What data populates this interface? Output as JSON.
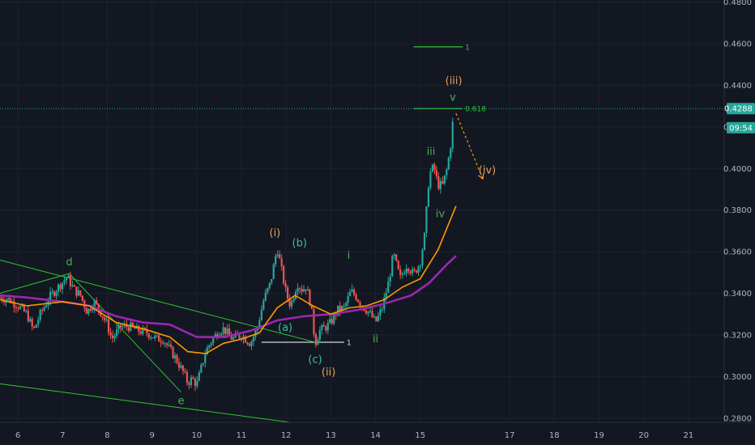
{
  "chart_data": {
    "type": "line",
    "y_axis": {
      "ticks": [
        "0.4800",
        "0.4600",
        "0.4400",
        "0.4200",
        "0.4000",
        "0.3800",
        "0.3600",
        "0.3400",
        "0.3200",
        "0.3000",
        "0.2800"
      ],
      "range": [
        0.278,
        0.481
      ]
    },
    "x_axis": {
      "ticks": [
        "6",
        "7",
        "8",
        "9",
        "10",
        "11",
        "12",
        "13",
        "14",
        "15",
        "17",
        "18",
        "19",
        "20",
        "21"
      ],
      "tick_values": [
        6,
        7,
        8,
        9,
        10,
        11,
        12,
        13,
        14,
        15,
        17,
        18,
        19,
        20,
        21
      ],
      "range": [
        5.6,
        21.8
      ]
    },
    "price_label": "0.4288",
    "price_value": 0.4288,
    "countdown_label": "09:54",
    "countdown_value": 0.4235,
    "price_series": [
      [
        5.6,
        0.338
      ],
      [
        5.8,
        0.337
      ],
      [
        6.0,
        0.334
      ],
      [
        6.2,
        0.33
      ],
      [
        6.35,
        0.322
      ],
      [
        6.5,
        0.33
      ],
      [
        6.7,
        0.338
      ],
      [
        6.9,
        0.343
      ],
      [
        7.1,
        0.348
      ],
      [
        7.25,
        0.342
      ],
      [
        7.4,
        0.339
      ],
      [
        7.55,
        0.331
      ],
      [
        7.7,
        0.336
      ],
      [
        7.85,
        0.331
      ],
      [
        8.0,
        0.325
      ],
      [
        8.1,
        0.318
      ],
      [
        8.3,
        0.324
      ],
      [
        8.5,
        0.324
      ],
      [
        8.7,
        0.322
      ],
      [
        8.9,
        0.321
      ],
      [
        9.1,
        0.318
      ],
      [
        9.25,
        0.318
      ],
      [
        9.4,
        0.313
      ],
      [
        9.55,
        0.308
      ],
      [
        9.7,
        0.302
      ],
      [
        9.8,
        0.297
      ],
      [
        9.9,
        0.299
      ],
      [
        10.0,
        0.296
      ],
      [
        10.1,
        0.304
      ],
      [
        10.2,
        0.312
      ],
      [
        10.35,
        0.318
      ],
      [
        10.5,
        0.322
      ],
      [
        10.6,
        0.323
      ],
      [
        10.8,
        0.318
      ],
      [
        11.0,
        0.32
      ],
      [
        11.2,
        0.316
      ],
      [
        11.35,
        0.323
      ],
      [
        11.5,
        0.337
      ],
      [
        11.65,
        0.345
      ],
      [
        11.8,
        0.362
      ],
      [
        11.9,
        0.351
      ],
      [
        12.0,
        0.34
      ],
      [
        12.1,
        0.334
      ],
      [
        12.25,
        0.345
      ],
      [
        12.35,
        0.342
      ],
      [
        12.45,
        0.343
      ],
      [
        12.55,
        0.335
      ],
      [
        12.65,
        0.316
      ],
      [
        12.75,
        0.322
      ],
      [
        12.9,
        0.324
      ],
      [
        13.0,
        0.326
      ],
      [
        13.15,
        0.332
      ],
      [
        13.3,
        0.333
      ],
      [
        13.45,
        0.341
      ],
      [
        13.55,
        0.339
      ],
      [
        13.7,
        0.334
      ],
      [
        13.85,
        0.331
      ],
      [
        14.0,
        0.326
      ],
      [
        14.15,
        0.333
      ],
      [
        14.3,
        0.346
      ],
      [
        14.4,
        0.359
      ],
      [
        14.55,
        0.347
      ],
      [
        14.7,
        0.354
      ],
      [
        14.85,
        0.349
      ],
      [
        15.0,
        0.355
      ],
      [
        15.1,
        0.368
      ],
      [
        15.2,
        0.397
      ],
      [
        15.3,
        0.401
      ],
      [
        15.4,
        0.392
      ],
      [
        15.5,
        0.392
      ],
      [
        15.6,
        0.4
      ],
      [
        15.7,
        0.414
      ],
      [
        15.75,
        0.429
      ]
    ],
    "ema_fast": [
      [
        5.6,
        0.337
      ],
      [
        6.2,
        0.334
      ],
      [
        7.0,
        0.336
      ],
      [
        7.6,
        0.334
      ],
      [
        8.2,
        0.326
      ],
      [
        8.8,
        0.323
      ],
      [
        9.4,
        0.319
      ],
      [
        9.8,
        0.312
      ],
      [
        10.2,
        0.311
      ],
      [
        10.6,
        0.316
      ],
      [
        11.0,
        0.318
      ],
      [
        11.4,
        0.321
      ],
      [
        11.8,
        0.333
      ],
      [
        12.2,
        0.339
      ],
      [
        12.6,
        0.334
      ],
      [
        13.0,
        0.33
      ],
      [
        13.4,
        0.333
      ],
      [
        13.8,
        0.334
      ],
      [
        14.2,
        0.337
      ],
      [
        14.6,
        0.343
      ],
      [
        15.0,
        0.347
      ],
      [
        15.4,
        0.361
      ],
      [
        15.8,
        0.382
      ]
    ],
    "ema_slow": [
      [
        5.6,
        0.339
      ],
      [
        6.2,
        0.338
      ],
      [
        7.0,
        0.336
      ],
      [
        7.6,
        0.334
      ],
      [
        8.2,
        0.329
      ],
      [
        8.8,
        0.326
      ],
      [
        9.4,
        0.325
      ],
      [
        10.0,
        0.319
      ],
      [
        10.6,
        0.319
      ],
      [
        11.2,
        0.322
      ],
      [
        11.8,
        0.327
      ],
      [
        12.4,
        0.329
      ],
      [
        13.0,
        0.33
      ],
      [
        13.6,
        0.332
      ],
      [
        14.2,
        0.335
      ],
      [
        14.8,
        0.339
      ],
      [
        15.2,
        0.345
      ],
      [
        15.6,
        0.354
      ],
      [
        15.8,
        0.358
      ]
    ],
    "trend_lines": [
      {
        "from": [
          5.6,
          0.34
        ],
        "to": [
          7.15,
          0.3495
        ]
      },
      {
        "from": [
          7.15,
          0.3495
        ],
        "to": [
          9.65,
          0.2925
        ]
      },
      {
        "from": [
          5.6,
          0.356
        ],
        "to": [
          12.65,
          0.3165
        ]
      },
      {
        "from": [
          5.6,
          0.2965
        ],
        "to": [
          12.8,
          0.276
        ]
      }
    ],
    "fib_levels": [
      {
        "label": "1",
        "value": 0.4585,
        "x_from": 14.85,
        "x_to": 15.95
      },
      {
        "label": "0.618",
        "value": 0.4288,
        "x_from": 14.85,
        "x_to": 15.95
      },
      {
        "label": "1",
        "value": 0.3165,
        "x_from": 11.45,
        "x_to": 13.3
      }
    ],
    "projection": {
      "from": [
        15.8,
        0.4265
      ],
      "to": [
        16.4,
        0.395
      ]
    },
    "wave_labels": [
      {
        "text": "d",
        "x": 7.15,
        "y": 0.3535,
        "color": "#4caf50"
      },
      {
        "text": "e",
        "x": 9.65,
        "y": 0.2868,
        "color": "#4caf50"
      },
      {
        "text": "(i)",
        "x": 11.75,
        "y": 0.3675,
        "color": "#e6a25a"
      },
      {
        "text": "(b)",
        "x": 12.3,
        "y": 0.3625,
        "color": "#2ec4a6"
      },
      {
        "text": "(a)",
        "x": 11.98,
        "y": 0.322,
        "color": "#2ec4a6"
      },
      {
        "text": "(c)",
        "x": 12.65,
        "y": 0.3065,
        "color": "#2ec4a6"
      },
      {
        "text": "(ii)",
        "x": 12.95,
        "y": 0.3005,
        "color": "#e6a25a"
      },
      {
        "text": "i",
        "x": 13.4,
        "y": 0.3565,
        "color": "#4caf50"
      },
      {
        "text": "ii",
        "x": 14.0,
        "y": 0.3165,
        "color": "#4caf50"
      },
      {
        "text": "iii",
        "x": 15.24,
        "y": 0.4065,
        "color": "#4caf50"
      },
      {
        "text": "iv",
        "x": 15.45,
        "y": 0.3765,
        "color": "#4caf50"
      },
      {
        "text": "v",
        "x": 15.73,
        "y": 0.4325,
        "color": "#4caf50"
      },
      {
        "text": "(iii)",
        "x": 15.75,
        "y": 0.4405,
        "color": "#e6a25a"
      },
      {
        "text": "(iv)",
        "x": 16.5,
        "y": 0.3975,
        "color": "#e6a25a"
      }
    ],
    "colors": {
      "background": "#131722",
      "grid": "#1e222d",
      "up": "#26a69a",
      "down": "#ef5350",
      "ema_fast": "#ff9800",
      "ema_slow": "#9c27b0",
      "trend": "#2ec72e",
      "fib": "#2ec72e",
      "axis_text": "#b2b5be",
      "price_badge": "#26a69a"
    },
    "grid": true
  }
}
